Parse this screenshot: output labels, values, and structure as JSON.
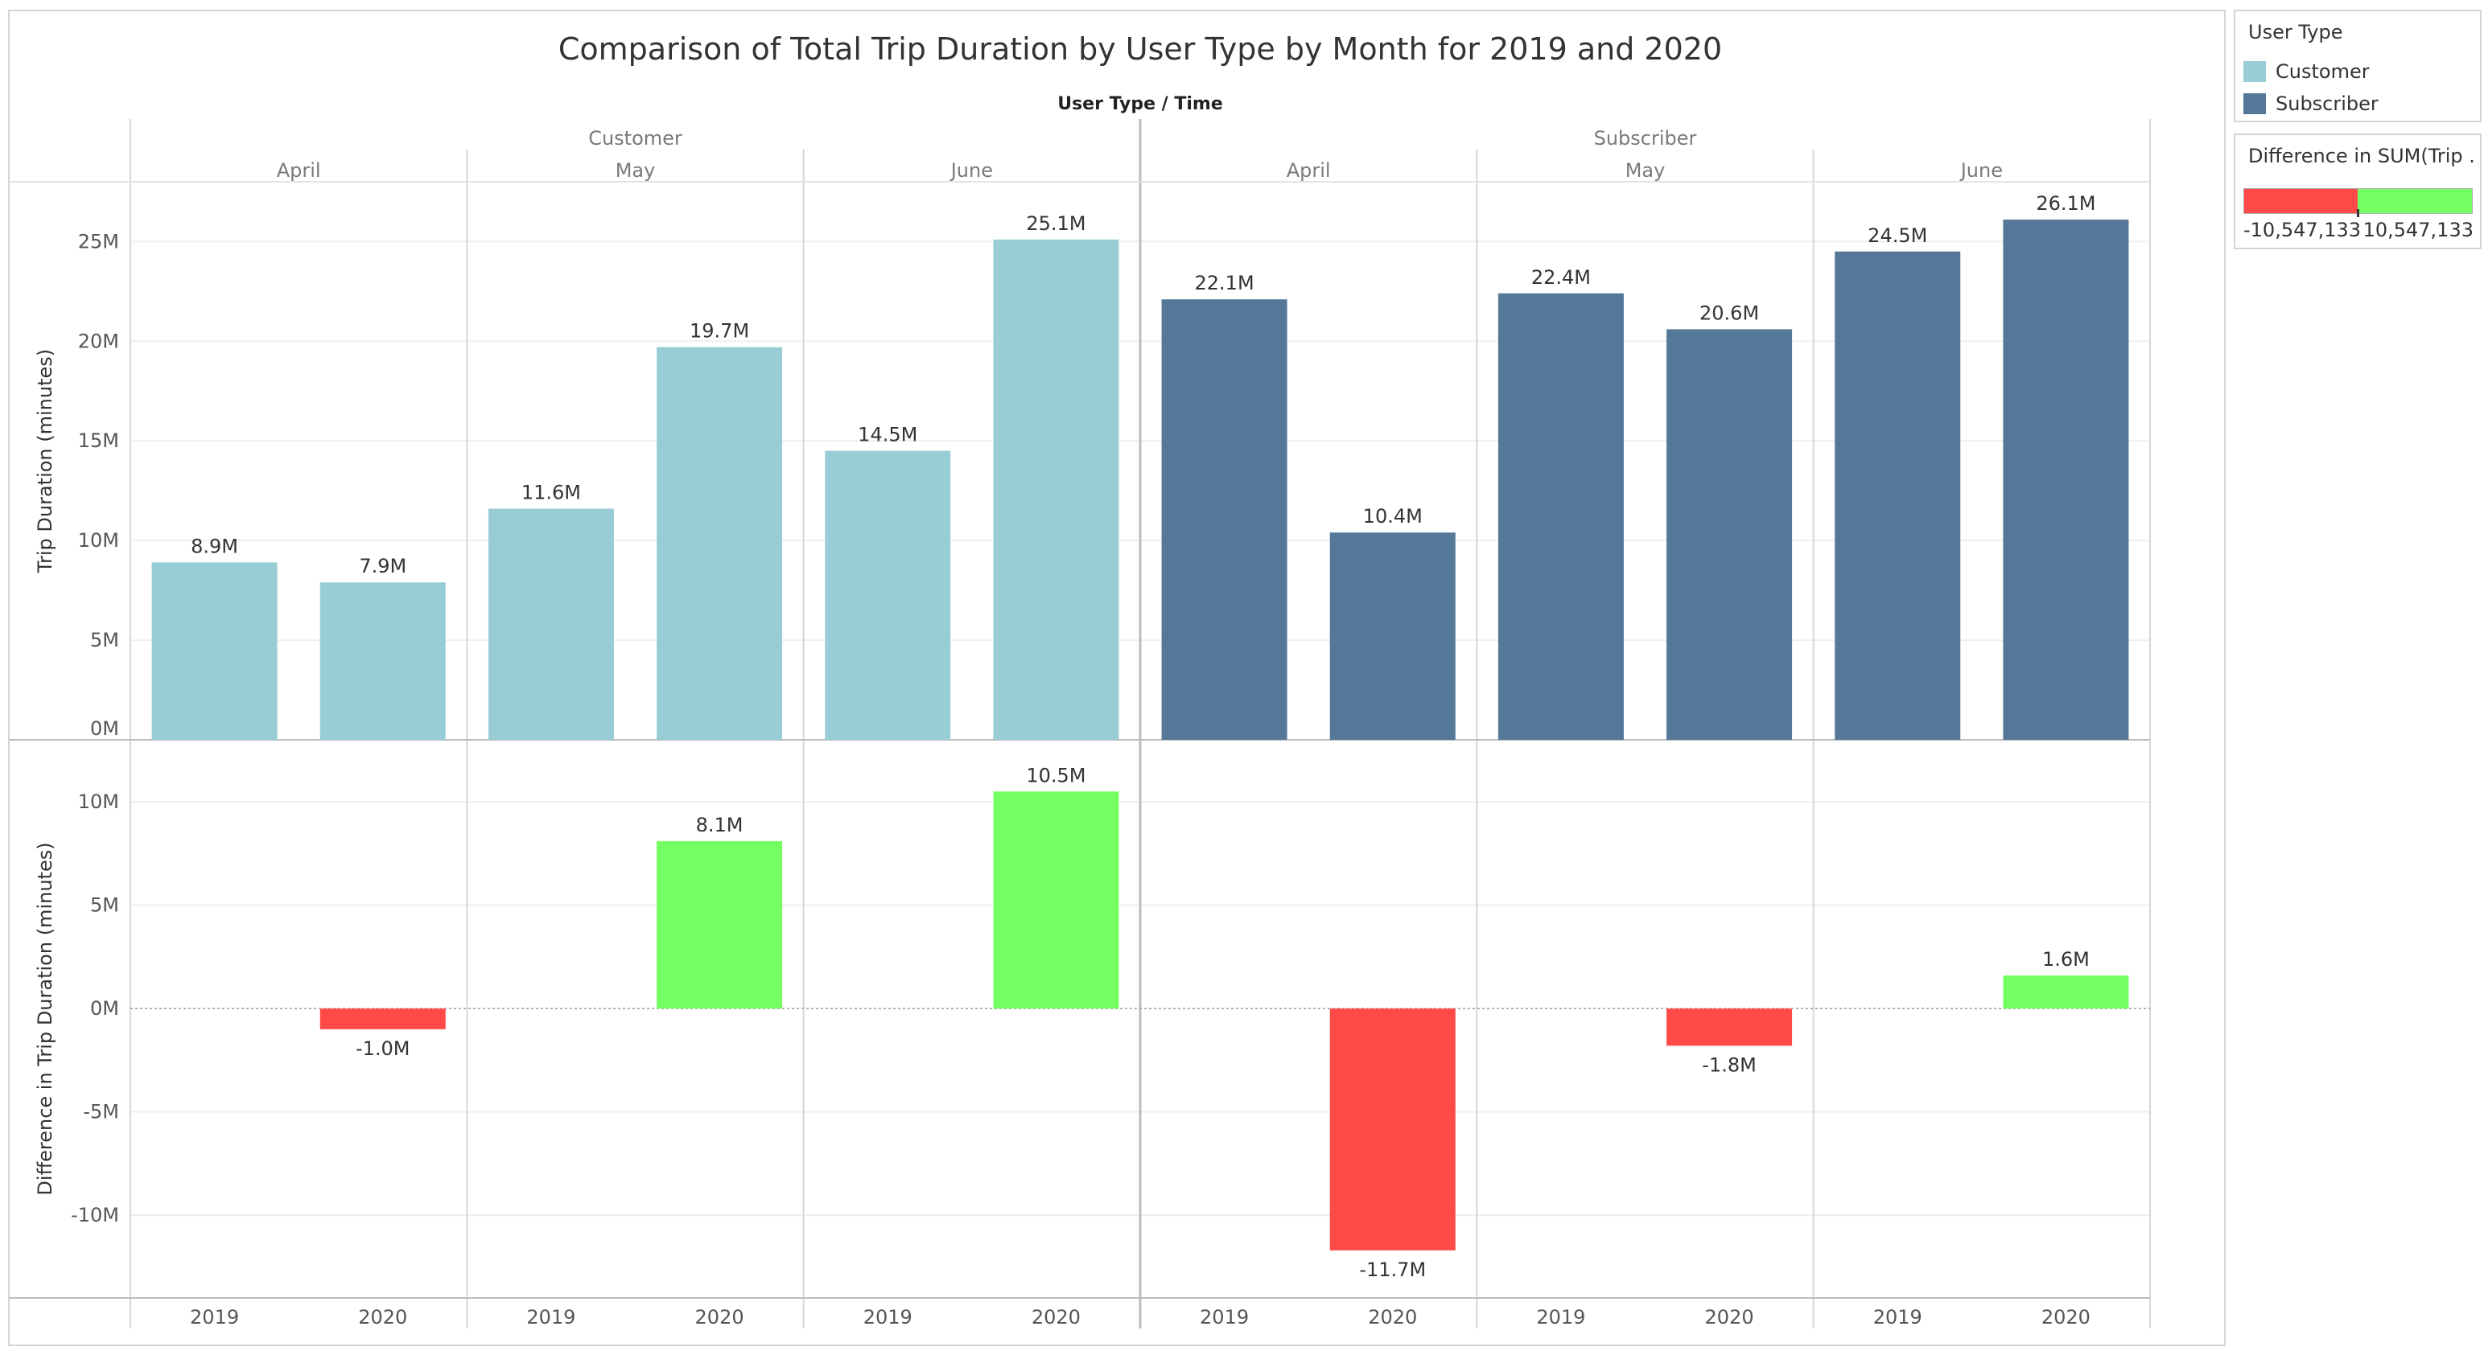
{
  "chart_data": {
    "type": "bar",
    "title": "Comparison of Total Trip Duration by User Type by Month for 2019 and 2020",
    "column_header": "User Type  /  Time",
    "user_types": [
      "Customer",
      "Subscriber"
    ],
    "months": [
      "April",
      "May",
      "June"
    ],
    "years": [
      "2019",
      "2020"
    ],
    "top": {
      "ylabel": "Trip Duration (minutes)",
      "ylim": [
        0,
        28
      ],
      "ticks": [
        "0M",
        "5M",
        "10M",
        "15M",
        "20M",
        "25M"
      ],
      "tick_values": [
        0,
        5,
        10,
        15,
        20,
        25
      ],
      "unit": "millions of minutes",
      "series": [
        {
          "name": "Customer",
          "color": "#99cdd5",
          "values": [
            8.9,
            7.9,
            11.6,
            19.7,
            14.5,
            25.1
          ],
          "labels": [
            "8.9M",
            "7.9M",
            "11.6M",
            "19.7M",
            "14.5M",
            "25.1M"
          ]
        },
        {
          "name": "Subscriber",
          "color": "#557899",
          "values": [
            22.1,
            10.4,
            22.4,
            20.6,
            24.5,
            26.1
          ],
          "labels": [
            "22.1M",
            "10.4M",
            "22.4M",
            "20.6M",
            "24.5M",
            "26.1M"
          ]
        }
      ]
    },
    "bottom": {
      "ylabel": "Difference in Trip Duration (minutes)",
      "ylim": [
        -14,
        13
      ],
      "ticks": [
        "-10M",
        "-5M",
        "0M",
        "5M",
        "10M"
      ],
      "tick_values": [
        -10,
        -5,
        0,
        5,
        10
      ],
      "unit": "millions of minutes",
      "positive_color": "#74ff63",
      "negative_color": "#ff4a48",
      "series": [
        {
          "name": "Customer",
          "values": [
            null,
            -1.0,
            null,
            8.1,
            null,
            10.5
          ],
          "labels": [
            "",
            "-1.0M",
            "",
            "8.1M",
            "",
            "10.5M"
          ]
        },
        {
          "name": "Subscriber",
          "values": [
            null,
            -11.7,
            null,
            -1.8,
            null,
            1.6
          ],
          "labels": [
            "",
            "-11.7M",
            "",
            "-1.8M",
            "",
            "1.6M"
          ]
        }
      ]
    },
    "legend": {
      "user_type": {
        "title": "User Type",
        "items": [
          {
            "label": "Customer",
            "color": "#99cdd5"
          },
          {
            "label": "Subscriber",
            "color": "#557899"
          }
        ]
      },
      "difference": {
        "title": "Difference in SUM(Trip ...",
        "min_label": "-10,547,133",
        "max_label": "10,547,133"
      }
    }
  }
}
